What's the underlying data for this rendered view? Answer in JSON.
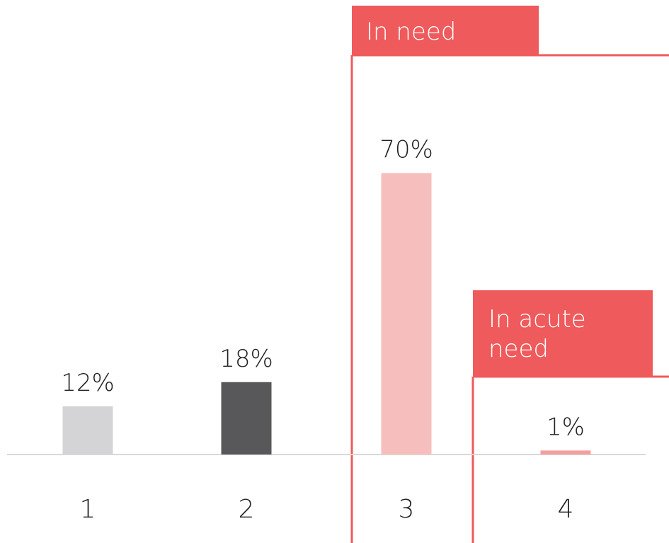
{
  "chart_data": {
    "type": "bar",
    "categories": [
      "1",
      "2",
      "3",
      "4"
    ],
    "values": [
      12,
      18,
      70,
      1
    ],
    "value_labels": [
      "12%",
      "18%",
      "70%",
      "1%"
    ],
    "bar_colors": [
      "#d4d4d6",
      "#58585a",
      "#f7bebe",
      "#f39f9f"
    ],
    "ylim": [
      0,
      100
    ],
    "grid": false,
    "legend": "none",
    "groups": [
      {
        "label_lines": [
          "In need"
        ],
        "color": "#ef5a5c",
        "categories": [
          "3",
          "4"
        ]
      },
      {
        "label_lines": [
          "In acute",
          "need"
        ],
        "color": "#ef5a5c",
        "categories": [
          "4"
        ]
      }
    ],
    "axis_color": "#d9d9d9"
  }
}
